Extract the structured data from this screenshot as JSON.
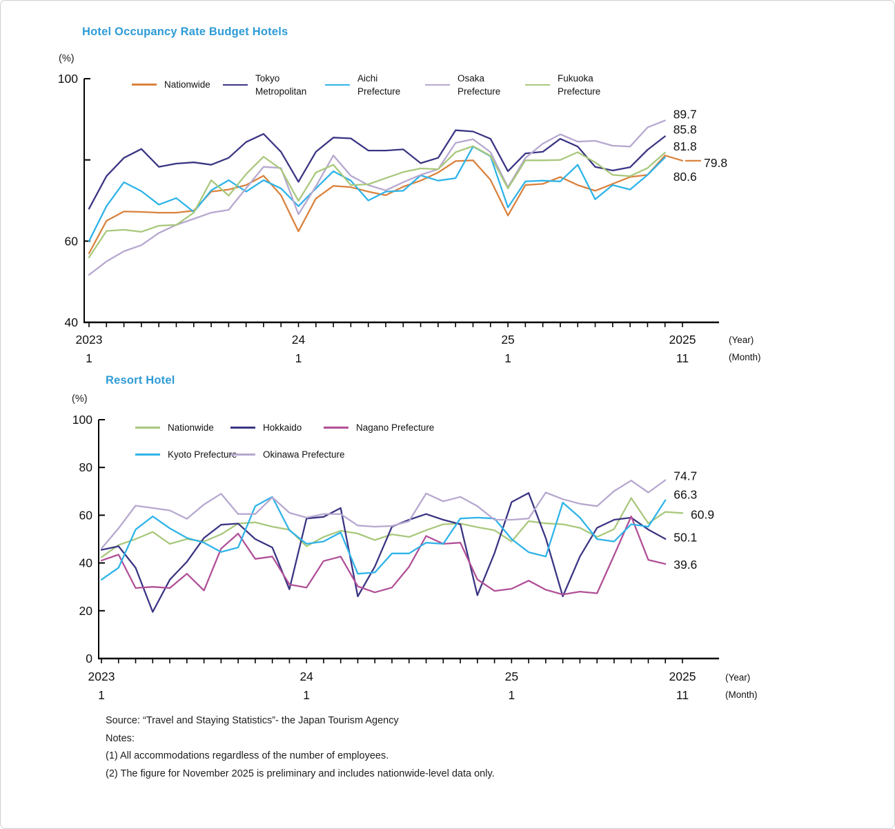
{
  "page": {
    "background": "#ffffff",
    "border_color": "#cfcfcf"
  },
  "footer": {
    "source": "Source: “Travel and Staying Statistics”- the Japan Tourism Agency",
    "notes_heading": "Notes:",
    "note1": "(1) All accommodations regardless of the number of employees.",
    "note2": "(2) The figure for November 2025 is preliminary and includes nationwide-level data only."
  },
  "chart_data": [
    {
      "type": "line",
      "title": "Hotel Occupancy Rate Budget Hotels",
      "title_color": "#2E9BD6",
      "unit": "(%)",
      "ylabel": "(%)",
      "ylim": [
        40,
        100
      ],
      "grid": false,
      "legend_position": "top-inside",
      "year_caption": "(Year)",
      "month_caption": "(Month)",
      "x_axis_marks": [
        {
          "month_index": 0,
          "year": "2023",
          "month": "1"
        },
        {
          "month_index": 12,
          "year": "24",
          "month": "1"
        },
        {
          "month_index": 24,
          "year": "25",
          "month": "1"
        },
        {
          "month_index": 34,
          "year": "2025",
          "month": "11"
        }
      ],
      "y_ticks": [
        {
          "value": 100,
          "label": "100"
        },
        {
          "value": 80,
          "label": ""
        },
        {
          "value": 60,
          "label": "60"
        },
        {
          "value": 40,
          "label": "40"
        }
      ],
      "months": [
        "2023-1",
        "2023-2",
        "2023-3",
        "2023-4",
        "2023-5",
        "2023-6",
        "2023-7",
        "2023-8",
        "2023-9",
        "2023-10",
        "2023-11",
        "2023-12",
        "2024-1",
        "2024-2",
        "2024-3",
        "2024-4",
        "2024-5",
        "2024-6",
        "2024-7",
        "2024-8",
        "2024-9",
        "2024-10",
        "2024-11",
        "2024-12",
        "2025-1",
        "2025-2",
        "2025-3",
        "2025-4",
        "2025-5",
        "2025-6",
        "2025-7",
        "2025-8",
        "2025-9",
        "2025-10",
        "2025-11"
      ],
      "series": [
        {
          "name": "Nationwide",
          "legend_lines": [
            "Nationwide"
          ],
          "color": "#D9823D",
          "end_label": "79.8",
          "end_leader": true,
          "values": [
            57.0,
            65.0,
            67.3,
            67.2,
            67.0,
            67.0,
            67.5,
            72.2,
            72.7,
            73.8,
            76.1,
            71.3,
            62.4,
            70.5,
            73.6,
            73.3,
            72.2,
            71.3,
            73.4,
            74.9,
            76.9,
            79.7,
            79.9,
            75.1,
            66.3,
            73.8,
            74.1,
            75.8,
            73.8,
            72.4,
            74.1,
            75.8,
            76.3,
            81.1,
            79.8
          ]
        },
        {
          "name": "Tokyo Metropolitan",
          "legend_lines": [
            "Tokyo",
            "Metropolitan"
          ],
          "color": "#3A3583",
          "end_label": "85.8",
          "end_leader": false,
          "values": [
            68.0,
            76.0,
            80.5,
            82.7,
            78.3,
            79.1,
            79.4,
            78.8,
            80.5,
            84.4,
            86.4,
            82.0,
            74.6,
            82.0,
            85.5,
            85.3,
            82.3,
            82.3,
            82.6,
            79.2,
            80.5,
            87.3,
            87.0,
            85.2,
            77.2,
            81.6,
            82.0,
            85.2,
            83.3,
            78.3,
            77.4,
            78.2,
            82.5,
            85.8,
            null
          ]
        },
        {
          "name": "Aichi Prefecture",
          "legend_lines": [
            "Aichi",
            "Prefecture"
          ],
          "color": "#2EB3E8",
          "end_label": "80.6",
          "end_leader": false,
          "values": [
            60.0,
            68.6,
            74.5,
            72.3,
            69.0,
            70.6,
            67.2,
            72.5,
            75.0,
            72.2,
            75.0,
            73.0,
            68.6,
            73.0,
            77.2,
            74.9,
            70.0,
            72.2,
            72.4,
            76.2,
            74.9,
            75.5,
            83.3,
            80.9,
            68.3,
            74.7,
            74.9,
            74.7,
            78.8,
            70.3,
            73.8,
            72.7,
            76.3,
            80.6,
            null
          ]
        },
        {
          "name": "Osaka Prefecture",
          "legend_lines": [
            "Osaka",
            "Prefecture"
          ],
          "color": "#B6A7CF",
          "end_label": "89.7",
          "end_leader": false,
          "values": [
            51.7,
            55.0,
            57.5,
            59.0,
            62.0,
            64.0,
            65.5,
            67.0,
            67.7,
            73.0,
            78.3,
            78.0,
            66.6,
            73.5,
            81.1,
            76.1,
            73.8,
            72.5,
            74.5,
            76.3,
            77.7,
            84.2,
            85.1,
            81.9,
            73.3,
            80.5,
            84.0,
            86.3,
            84.5,
            84.7,
            83.5,
            83.3,
            88.0,
            89.7,
            null
          ]
        },
        {
          "name": "Fukuoka Prefecture",
          "legend_lines": [
            "Fukuoka",
            "Prefecture"
          ],
          "color": "#A8C87C",
          "end_label": "81.8",
          "end_leader": false,
          "values": [
            56.0,
            62.5,
            62.8,
            62.3,
            63.8,
            64.0,
            67.0,
            75.0,
            71.2,
            76.5,
            80.8,
            77.7,
            69.9,
            76.9,
            78.8,
            73.8,
            74.0,
            75.5,
            77.0,
            77.9,
            77.7,
            81.9,
            83.4,
            81.0,
            73.0,
            79.9,
            79.9,
            80.0,
            81.9,
            79.4,
            76.3,
            76.0,
            78.0,
            81.8,
            null
          ]
        }
      ]
    },
    {
      "type": "line",
      "title": "Resort Hotel",
      "title_color": "#2E9BD6",
      "unit": "(%)",
      "ylabel": "(%)",
      "ylim": [
        0,
        100
      ],
      "grid": false,
      "legend_position": "top-inside",
      "year_caption": "(Year)",
      "month_caption": "(Month)",
      "x_axis_marks": [
        {
          "month_index": 0,
          "year": "2023",
          "month": "1"
        },
        {
          "month_index": 12,
          "year": "24",
          "month": "1"
        },
        {
          "month_index": 24,
          "year": "25",
          "month": "1"
        },
        {
          "month_index": 34,
          "year": "2025",
          "month": "11"
        }
      ],
      "y_ticks": [
        {
          "value": 100,
          "label": "100"
        },
        {
          "value": 80,
          "label": "80"
        },
        {
          "value": 60,
          "label": "60"
        },
        {
          "value": 40,
          "label": "40"
        },
        {
          "value": 20,
          "label": "20"
        },
        {
          "value": 0,
          "label": "0"
        }
      ],
      "months": [
        "2023-1",
        "2023-2",
        "2023-3",
        "2023-4",
        "2023-5",
        "2023-6",
        "2023-7",
        "2023-8",
        "2023-9",
        "2023-10",
        "2023-11",
        "2023-12",
        "2024-1",
        "2024-2",
        "2024-3",
        "2024-4",
        "2024-5",
        "2024-6",
        "2024-7",
        "2024-8",
        "2024-9",
        "2024-10",
        "2024-11",
        "2024-12",
        "2025-1",
        "2025-2",
        "2025-3",
        "2025-4",
        "2025-5",
        "2025-6",
        "2025-7",
        "2025-8",
        "2025-9",
        "2025-10",
        "2025-11"
      ],
      "series": [
        {
          "name": "Nationwide",
          "legend_lines": [
            "Nationwide"
          ],
          "color": "#A8C87C",
          "end_label": "60.9",
          "end_leader": false,
          "values": [
            42.4,
            47.5,
            50.0,
            53.0,
            48.0,
            50.0,
            49.0,
            52.0,
            56.5,
            57.0,
            55.2,
            53.9,
            47.0,
            50.9,
            53.5,
            52.3,
            49.6,
            52.0,
            50.9,
            53.7,
            56.2,
            56.5,
            55.0,
            53.7,
            49.0,
            57.5,
            56.6,
            56.2,
            54.7,
            50.9,
            54.2,
            67.2,
            56.6,
            61.4,
            60.9
          ]
        },
        {
          "name": "Hokkaido",
          "legend_lines": [
            "Hokkaido"
          ],
          "color": "#3A3583",
          "end_label": "50.1",
          "end_leader": false,
          "values": [
            45.5,
            47.0,
            38.0,
            19.5,
            33.0,
            40.5,
            50.5,
            56.0,
            56.5,
            50.0,
            46.5,
            29.0,
            58.6,
            59.3,
            63.0,
            26.0,
            38.5,
            55.2,
            58.1,
            60.5,
            58.1,
            56.2,
            26.5,
            44.1,
            65.5,
            69.3,
            50.4,
            26.0,
            42.7,
            54.7,
            58.1,
            59.0,
            54.0,
            50.1,
            null
          ]
        },
        {
          "name": "Nagano Prefecture",
          "legend_lines": [
            "Nagano Prefecture"
          ],
          "color": "#B04F97",
          "end_label": "39.6",
          "end_leader": false,
          "values": [
            41.0,
            43.5,
            29.5,
            30.0,
            29.5,
            35.5,
            28.5,
            46.0,
            52.3,
            41.7,
            42.7,
            31.0,
            29.7,
            40.8,
            42.7,
            30.2,
            27.7,
            29.7,
            38.4,
            51.3,
            48.0,
            48.5,
            33.1,
            28.3,
            29.2,
            32.6,
            28.8,
            26.8,
            28.0,
            27.3,
            43.2,
            59.5,
            41.3,
            39.6,
            null
          ]
        },
        {
          "name": "Kyoto Prefecture",
          "legend_lines": [
            "Kyoto Prefecture"
          ],
          "color": "#2EB3E8",
          "end_label": "66.3",
          "end_leader": false,
          "values": [
            33.0,
            38.0,
            54.0,
            59.5,
            54.5,
            50.5,
            48.5,
            44.6,
            46.5,
            63.8,
            67.7,
            53.7,
            48.0,
            49.0,
            52.8,
            35.5,
            36.0,
            44.0,
            44.0,
            48.5,
            48.0,
            58.6,
            59.0,
            58.6,
            50.0,
            44.5,
            42.7,
            65.3,
            59.0,
            50.0,
            49.0,
            56.2,
            55.2,
            66.3,
            null
          ]
        },
        {
          "name": "Okinawa Prefecture",
          "legend_lines": [
            "Okinawa Prefecture"
          ],
          "color": "#B6A7CF",
          "end_label": "74.7",
          "end_leader": false,
          "values": [
            46.0,
            54.5,
            64.0,
            63.0,
            62.0,
            58.5,
            64.5,
            69.0,
            60.5,
            60.5,
            67.5,
            61.0,
            59.0,
            60.5,
            60.5,
            55.7,
            55.2,
            55.5,
            57.5,
            69.1,
            65.8,
            67.7,
            63.8,
            58.1,
            58.1,
            58.6,
            69.5,
            66.7,
            64.8,
            63.8,
            70.1,
            74.5,
            69.5,
            74.7,
            null
          ]
        }
      ]
    }
  ]
}
